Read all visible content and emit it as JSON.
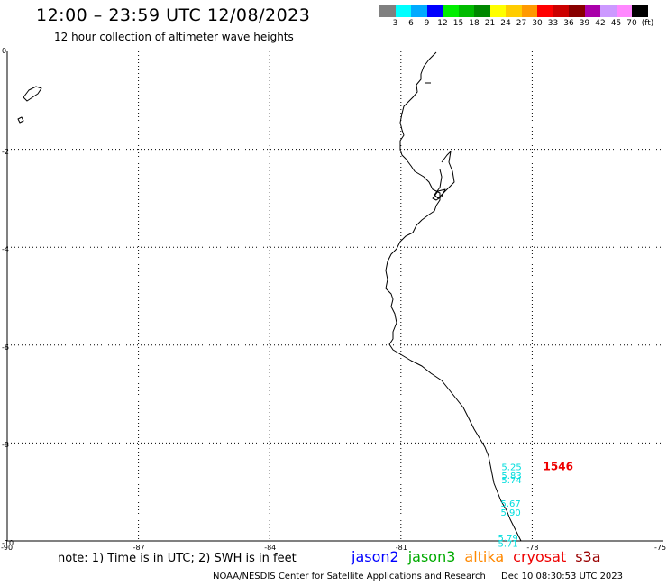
{
  "header": {
    "title": "12:00 – 23:59 UTC 12/08/2023",
    "subtitle": "12 hour collection of altimeter wave heights"
  },
  "scale": {
    "colors": [
      "#808080",
      "#00ffff",
      "#00aaff",
      "#0000ff",
      "#00ee00",
      "#00bb00",
      "#008800",
      "#ffff00",
      "#ffcc00",
      "#ff9900",
      "#ff0000",
      "#cc0000",
      "#880000",
      "#aa00aa",
      "#cc99ff",
      "#ff88ff",
      "#000000"
    ],
    "labels": [
      "3",
      "6",
      "9",
      "12",
      "15",
      "18",
      "21",
      "24",
      "27",
      "30",
      "33",
      "36",
      "39",
      "42",
      "45",
      "70",
      "(ft)"
    ]
  },
  "map": {
    "lat_labels": [
      "0",
      "-2",
      "-4",
      "-6",
      "-8",
      "-10"
    ],
    "lon_labels": [
      "-90",
      "-87",
      "-84",
      "-81",
      "-78",
      "-75"
    ],
    "land_color": "#000000",
    "grid_color": "#000000"
  },
  "observations": [
    {
      "text": "5.25",
      "lon": -78.7,
      "lat": -8.55,
      "color": "#00dddd"
    },
    {
      "text": "5.83",
      "lon": -78.7,
      "lat": -8.73,
      "color": "#00dddd"
    },
    {
      "text": "5.74",
      "lon": -78.7,
      "lat": -8.82,
      "color": "#00dddd"
    },
    {
      "text": "1546",
      "lon": -77.75,
      "lat": -8.55,
      "color": "#ee0000"
    },
    {
      "text": "5.67",
      "lon": -78.72,
      "lat": -9.3,
      "color": "#00dddd"
    },
    {
      "text": "5.90",
      "lon": -78.72,
      "lat": -9.48,
      "color": "#00dddd"
    },
    {
      "text": "5.79",
      "lon": -78.78,
      "lat": -10.0,
      "color": "#00dddd"
    },
    {
      "text": "5.71",
      "lon": -78.78,
      "lat": -10.12,
      "color": "#00dddd"
    }
  ],
  "footer": {
    "note": "note:  1) Time is in UTC;  2) SWH is in feet",
    "satellites": [
      {
        "name": "jason2",
        "color": "#0000ff"
      },
      {
        "name": "jason3",
        "color": "#00aa00"
      },
      {
        "name": "altika",
        "color": "#ff8800"
      },
      {
        "name": "cryosat",
        "color": "#ee0000"
      },
      {
        "name": "s3a",
        "color": "#990000"
      }
    ],
    "credit": "NOAA/NESDIS Center for Satellite Applications and Research",
    "timestamp": "Dec 10 08:30:53 UTC 2023"
  }
}
